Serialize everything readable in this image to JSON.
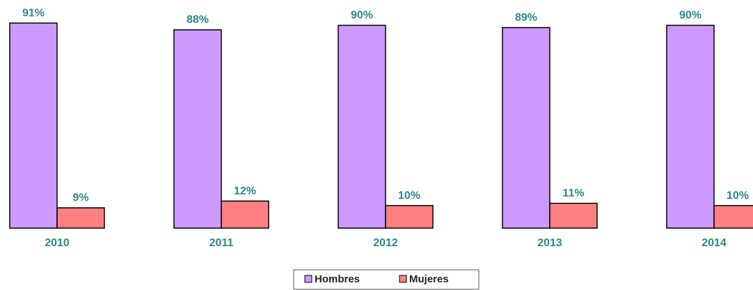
{
  "chart_data": {
    "type": "bar",
    "categories": [
      "2010",
      "2011",
      "2012",
      "2013",
      "2014"
    ],
    "series": [
      {
        "name": "Hombres",
        "color": "#cc99ff",
        "values": [
          91,
          88,
          90,
          89,
          90
        ],
        "value_labels": [
          "91%",
          "88%",
          "90%",
          "89%",
          "90%"
        ]
      },
      {
        "name": "Mujeres",
        "color": "#ff8080",
        "values": [
          9,
          12,
          10,
          11,
          10
        ],
        "value_labels": [
          "9%",
          "12%",
          "10%",
          "11%",
          "10%"
        ]
      }
    ],
    "ylim": [
      0,
      100
    ],
    "legend": "bottom"
  }
}
